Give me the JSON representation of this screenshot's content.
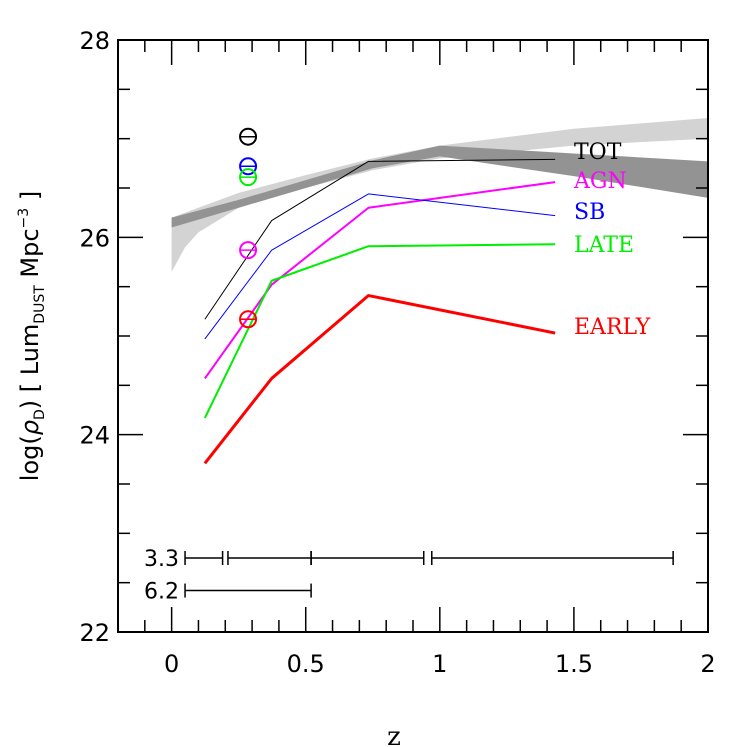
{
  "chart_data": {
    "type": "line",
    "xlabel": "z",
    "ylabel": {
      "prefix": "log(",
      "rho": "ρ",
      "rho_sub": "D",
      "mid": ")   [ Lum",
      "sub": "DUST",
      "unit": " Mpc",
      "sup": "−3",
      "end": " ]"
    },
    "xlim": [
      -0.2,
      2.0
    ],
    "ylim": [
      22,
      28
    ],
    "xticks": [
      0,
      0.5,
      1,
      1.5,
      2
    ],
    "xtick_labels": [
      "0",
      "0.5",
      "1",
      "1.5",
      "2"
    ],
    "yticks": [
      22,
      24,
      26,
      28
    ],
    "ytick_labels": [
      "22",
      "24",
      "26",
      "28"
    ],
    "grid": false,
    "series": [
      {
        "name": "TOT",
        "color": "#000000",
        "width": 1,
        "x": [
          0.124,
          0.373,
          0.734,
          1.43
        ],
        "y": [
          25.17,
          26.17,
          26.77,
          26.79
        ]
      },
      {
        "name": "AGN",
        "color": "#ff00ff",
        "width": 2,
        "x": [
          0.124,
          0.373,
          0.734,
          1.43
        ],
        "y": [
          24.57,
          25.52,
          26.3,
          26.56
        ]
      },
      {
        "name": "SB",
        "color": "#0000ff",
        "width": 1,
        "x": [
          0.124,
          0.373,
          0.734,
          1.43
        ],
        "y": [
          24.97,
          25.87,
          26.44,
          26.22
        ]
      },
      {
        "name": "LATE",
        "color": "#00ee00",
        "width": 2,
        "x": [
          0.124,
          0.373,
          0.734,
          1.43
        ],
        "y": [
          24.17,
          25.56,
          25.91,
          25.93
        ]
      },
      {
        "name": "EARLY",
        "color": "#ff0000",
        "width": 3,
        "x": [
          0.124,
          0.373,
          0.734,
          1.43
        ],
        "y": [
          23.71,
          24.57,
          25.41,
          25.03
        ]
      }
    ],
    "points": [
      {
        "color": "#000000",
        "x": 0.285,
        "y": 27.02
      },
      {
        "color": "#0000ff",
        "x": 0.285,
        "y": 26.72
      },
      {
        "color": "#00ee00",
        "x": 0.285,
        "y": 26.61
      },
      {
        "color": "#ff00ff",
        "x": 0.285,
        "y": 25.87
      },
      {
        "color": "#ff0000",
        "x": 0.285,
        "y": 25.17
      }
    ],
    "bands": [
      {
        "color": "#d3d3d3",
        "upper": [
          [
            0,
            26.2
          ],
          [
            0.25,
            26.45
          ],
          [
            0.5,
            26.63
          ],
          [
            0.75,
            26.8
          ],
          [
            1,
            26.93
          ],
          [
            1.5,
            27.1
          ],
          [
            2,
            27.21
          ]
        ],
        "lower": [
          [
            0,
            25.65
          ],
          [
            0.05,
            25.9
          ],
          [
            0.1,
            26.05
          ],
          [
            0.25,
            26.3
          ],
          [
            0.5,
            26.5
          ],
          [
            0.75,
            26.68
          ],
          [
            1,
            26.8
          ],
          [
            1.5,
            26.93
          ],
          [
            2,
            27.0
          ]
        ]
      },
      {
        "color": "#939393",
        "upper": [
          [
            0,
            26.2
          ],
          [
            0.25,
            26.38
          ],
          [
            0.5,
            26.58
          ],
          [
            0.75,
            26.78
          ],
          [
            1,
            26.93
          ],
          [
            1.5,
            26.85
          ],
          [
            2,
            26.77
          ]
        ],
        "lower": [
          [
            0,
            26.1
          ],
          [
            0.25,
            26.3
          ],
          [
            0.5,
            26.5
          ],
          [
            0.75,
            26.7
          ],
          [
            1,
            26.82
          ],
          [
            1.5,
            26.62
          ],
          [
            2,
            26.4
          ]
        ]
      }
    ],
    "interval_bars": [
      {
        "label": "3.3",
        "y": 22.75,
        "segments": [
          [
            0.05,
            0.19
          ],
          [
            0.21,
            0.52
          ],
          [
            0.52,
            0.94
          ],
          [
            0.97,
            1.87
          ]
        ]
      },
      {
        "label": "6.2",
        "y": 22.42,
        "segments": [
          [
            0.05,
            0.52
          ]
        ]
      }
    ]
  }
}
